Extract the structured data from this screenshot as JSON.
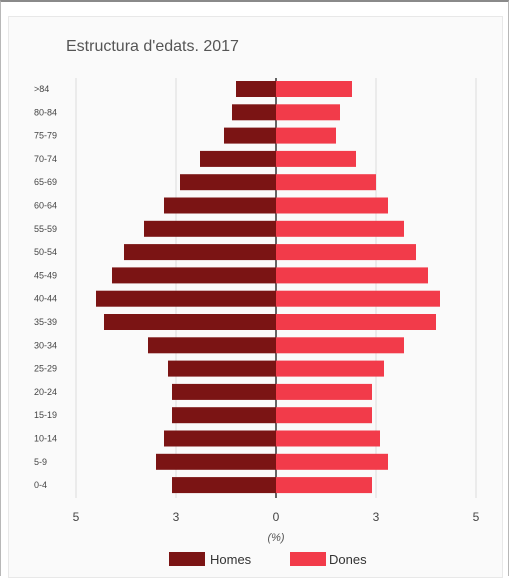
{
  "chart_data": {
    "type": "bar",
    "orientation": "horizontal",
    "title": "Estructura d'edats. 2017",
    "xlabel": "(%)",
    "ylabel": "",
    "categories": [
      ">84",
      "80-84",
      "75-79",
      "70-74",
      "65-69",
      "60-64",
      "55-59",
      "50-54",
      "45-49",
      "40-44",
      "35-39",
      "30-34",
      "25-29",
      "20-24",
      "15-19",
      "10-14",
      "5-9",
      "0-4"
    ],
    "series": [
      {
        "name": "Homes",
        "color": "#7b1414",
        "side": "left",
        "values": [
          1.0,
          1.1,
          1.3,
          1.9,
          2.4,
          2.8,
          3.3,
          3.8,
          4.1,
          4.5,
          4.3,
          3.2,
          2.7,
          2.6,
          2.6,
          2.8,
          3.0,
          2.6
        ]
      },
      {
        "name": "Dones",
        "color": "#f23b4a",
        "side": "right",
        "values": [
          1.9,
          1.6,
          1.5,
          2.0,
          2.5,
          2.8,
          3.2,
          3.5,
          3.8,
          4.1,
          4.0,
          3.2,
          2.7,
          2.4,
          2.4,
          2.6,
          2.8,
          2.4
        ]
      }
    ],
    "xticks": [
      "5",
      "3",
      "0",
      "3",
      "5"
    ],
    "xtick_values": [
      -5,
      -2.5,
      0,
      2.5,
      5
    ],
    "xlim": [
      -5,
      5
    ],
    "grid": true,
    "legend_position": "bottom"
  }
}
